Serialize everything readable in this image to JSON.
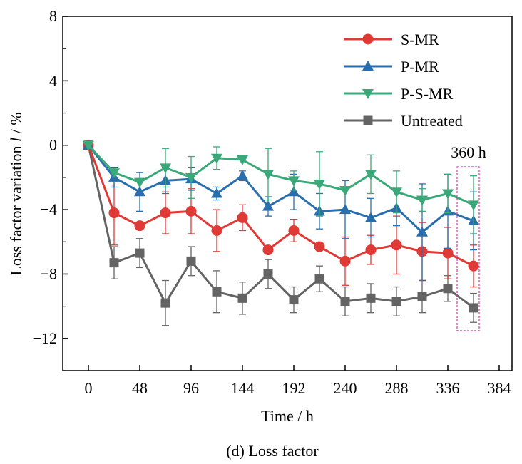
{
  "caption": "(d) Loss factor",
  "annotation": "360 h",
  "chart_data": {
    "type": "line",
    "xlabel": "Time / h",
    "ylabel": "Loss factor variation",
    "ylabel_symbol": "l",
    "ylabel_unit": " / %",
    "xlim": [
      -24,
      396
    ],
    "ylim": [
      -14,
      8
    ],
    "xticks": [
      0,
      48,
      96,
      144,
      192,
      240,
      288,
      336,
      384
    ],
    "yticks": [
      -12,
      -8,
      -4,
      0,
      4,
      8
    ],
    "ytick_labels": [
      "−12",
      "−8",
      "−4",
      "0",
      "4",
      "8"
    ],
    "legend_position": "top-right",
    "x": [
      0,
      24,
      48,
      72,
      96,
      120,
      144,
      168,
      192,
      216,
      240,
      264,
      288,
      312,
      336,
      360
    ],
    "series": [
      {
        "name": "S-MR",
        "color": "#e03a36",
        "marker": "circle",
        "values": [
          0,
          -4.2,
          -5.0,
          -4.2,
          -4.1,
          -5.3,
          -4.5,
          -6.5,
          -5.3,
          -6.3,
          -7.2,
          -6.5,
          -6.2,
          -6.6,
          -6.7,
          -7.5
        ],
        "errors": [
          0,
          2.0,
          0,
          1.3,
          1.4,
          1.3,
          0.8,
          0,
          0.7,
          0,
          1.5,
          0.9,
          1.8,
          1.8,
          1.6,
          1.3
        ]
      },
      {
        "name": "P-MR",
        "color": "#2a6fad",
        "marker": "triangle-up",
        "values": [
          0,
          -2.0,
          -2.9,
          -2.2,
          -2.1,
          -3.0,
          -1.9,
          -3.8,
          -2.9,
          -4.1,
          -4.0,
          -4.5,
          -3.9,
          -5.4,
          -4.1,
          -4.7
        ],
        "errors": [
          0,
          0.6,
          1.2,
          0.8,
          0.7,
          0.4,
          0.3,
          0.6,
          1.1,
          1.1,
          1.8,
          1.2,
          1.1,
          3.0,
          2.3,
          1.8
        ]
      },
      {
        "name": "P-S-MR",
        "color": "#3aa878",
        "marker": "triangle-down",
        "values": [
          0,
          -1.7,
          -2.3,
          -1.4,
          -2.0,
          -0.8,
          -0.9,
          -1.8,
          -2.2,
          -2.4,
          -2.8,
          -1.8,
          -2.9,
          -3.4,
          -3.0,
          -3.7
        ],
        "errors": [
          0,
          0,
          0,
          1.2,
          1.3,
          0.7,
          0,
          1.6,
          0.6,
          2.0,
          0,
          1.2,
          1.3,
          0.7,
          1.2,
          1.8
        ]
      },
      {
        "name": "Untreated",
        "color": "#646464",
        "marker": "square",
        "values": [
          0,
          -7.3,
          -6.7,
          -9.8,
          -7.2,
          -9.1,
          -9.5,
          -8.0,
          -9.6,
          -8.3,
          -9.7,
          -9.5,
          -9.7,
          -9.4,
          -8.9,
          -10.1
        ],
        "errors": [
          0,
          1.0,
          0.9,
          1.4,
          0.9,
          1.3,
          1.0,
          0.9,
          0.8,
          0.8,
          0.9,
          0.9,
          0.9,
          1.0,
          0.8,
          0.9
        ]
      }
    ]
  }
}
